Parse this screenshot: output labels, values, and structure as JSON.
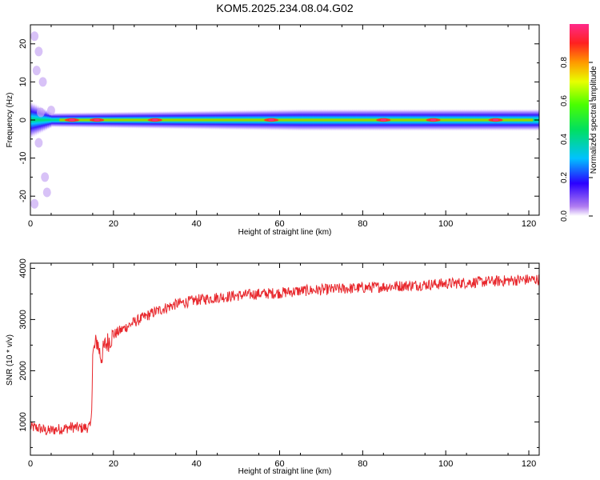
{
  "title": "KOM5.2025.234.08.04.G02",
  "chart_data": [
    {
      "type": "heatmap",
      "xlabel": "Height of straight line (km)",
      "ylabel": "Frequency (Hz)",
      "xlim": [
        0,
        122.5
      ],
      "ylim": [
        -25,
        25
      ],
      "xticks": [
        "0",
        "20",
        "40",
        "60",
        "80",
        "100",
        "120"
      ],
      "yticks": [
        "-20",
        "-10",
        "0",
        "10",
        "20"
      ],
      "colorbar": {
        "label": "Normalized spectral amplitude",
        "range": [
          0,
          1
        ],
        "ticks": [
          "0.0",
          "0.2",
          "0.4",
          "0.6",
          "0.8"
        ]
      },
      "band": {
        "center_hz": 0,
        "width_hz": [
          [
            0,
            5
          ],
          [
            5,
            2
          ],
          [
            65,
            3
          ],
          [
            122,
            3
          ]
        ],
        "peaks_km": [
          10,
          16,
          30,
          58,
          85,
          97,
          112
        ]
      }
    },
    {
      "type": "line",
      "xlabel": "Height of straight line (km)",
      "ylabel": "SNR (10 * v/v)",
      "xlim": [
        0,
        122.5
      ],
      "ylim": [
        350,
        4100
      ],
      "xticks": [
        "0",
        "20",
        "40",
        "60",
        "80",
        "100",
        "120"
      ],
      "yticks": [
        "1000",
        "2000",
        "3000",
        "4000"
      ],
      "color": "#e8282d",
      "series": [
        {
          "x": [
            0,
            2,
            4,
            6,
            8,
            10,
            12,
            14.5,
            14.8,
            15,
            16,
            17,
            18,
            20,
            25,
            30,
            35,
            40,
            45,
            50,
            55,
            60,
            65,
            70,
            75,
            80,
            85,
            90,
            95,
            100,
            105,
            110,
            115,
            120,
            122.5
          ],
          "y": [
            900,
            880,
            820,
            850,
            870,
            900,
            880,
            900,
            1400,
            2300,
            2600,
            2250,
            2500,
            2700,
            2950,
            3150,
            3300,
            3380,
            3430,
            3470,
            3500,
            3520,
            3560,
            3580,
            3600,
            3620,
            3640,
            3660,
            3680,
            3700,
            3720,
            3740,
            3760,
            3780,
            3780
          ]
        }
      ]
    }
  ]
}
